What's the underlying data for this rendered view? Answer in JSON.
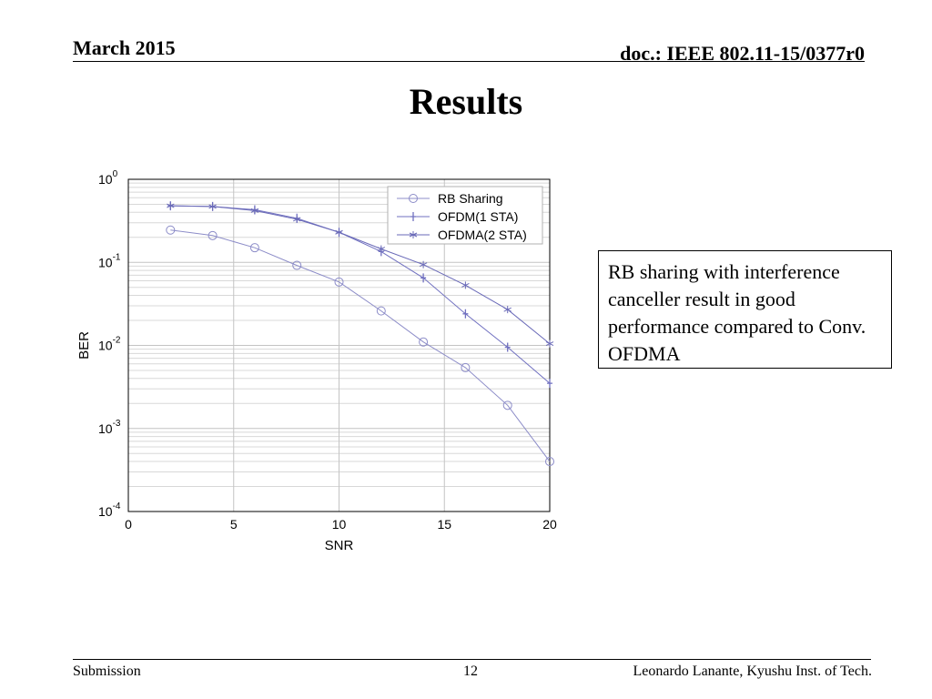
{
  "header": {
    "date": "March 2015",
    "doc": "doc.: IEEE 802.11-15/0377r0"
  },
  "slide": {
    "title": "Results"
  },
  "note": {
    "text": "RB sharing with interference canceller result in good performance compared to Conv. OFDMA"
  },
  "footer": {
    "left": "Submission",
    "page": "12",
    "right": "Leonardo Lanante, Kyushu Inst. of Tech."
  },
  "chart_data": {
    "type": "line",
    "xlabel": "SNR",
    "ylabel": "BER",
    "xlim": [
      0,
      20
    ],
    "ylim": [
      0.0001,
      1
    ],
    "yscale": "log",
    "grid": true,
    "legend_position": "top-right",
    "x_ticks": [
      0,
      5,
      10,
      15,
      20
    ],
    "y_ticks": [
      {
        "base": "10",
        "exp": "-4",
        "value": 0.0001
      },
      {
        "base": "10",
        "exp": "-3",
        "value": 0.001
      },
      {
        "base": "10",
        "exp": "-2",
        "value": 0.01
      },
      {
        "base": "10",
        "exp": "-1",
        "value": 0.1
      },
      {
        "base": "10",
        "exp": "0",
        "value": 1
      }
    ],
    "x": [
      2,
      4,
      6,
      8,
      10,
      12,
      14,
      16,
      18,
      20
    ],
    "series": [
      {
        "name": "RB Sharing",
        "marker": "circle",
        "color": "#8c8cc8",
        "values": [
          0.245,
          0.21,
          0.15,
          0.092,
          0.058,
          0.026,
          0.011,
          0.0054,
          0.0019,
          0.0004
        ]
      },
      {
        "name": "OFDM(1 STA)",
        "marker": "plus",
        "color": "#7070c0",
        "values": [
          0.48,
          0.47,
          0.43,
          0.34,
          0.23,
          0.135,
          0.065,
          0.024,
          0.0095,
          0.0035
        ]
      },
      {
        "name": "OFDMA(2 STA)",
        "marker": "star",
        "color": "#6a6ab8",
        "values": [
          0.48,
          0.47,
          0.42,
          0.33,
          0.23,
          0.145,
          0.094,
          0.053,
          0.027,
          0.0105
        ]
      }
    ]
  }
}
